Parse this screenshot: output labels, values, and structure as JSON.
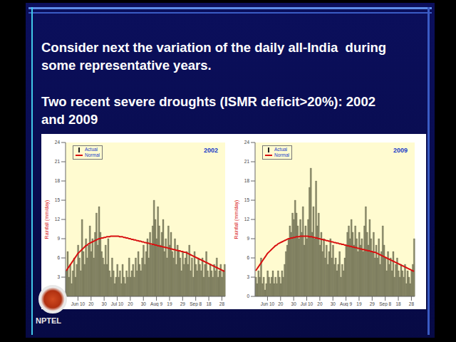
{
  "slide": {
    "heading_lines": [
      "Consider next the variation of the daily all-India  during",
      "some representative years."
    ],
    "subheading_lines": [
      "Two recent severe droughts (ISMR deficit>20%): 2002",
      "and 2009"
    ],
    "logo": "NPTEL"
  },
  "chart_data": [
    {
      "type": "bar",
      "title": "2002",
      "y_label": "Rainfall (mm/day)",
      "categories": [
        null,
        null,
        null,
        null,
        null,
        null,
        null,
        null,
        null,
        "Jun 10",
        null,
        null,
        null,
        null,
        null,
        null,
        null,
        null,
        null,
        "20",
        null,
        null,
        null,
        null,
        null,
        null,
        null,
        null,
        null,
        "30",
        null,
        null,
        null,
        null,
        null,
        null,
        null,
        null,
        null,
        "Jul 10",
        null,
        null,
        null,
        null,
        null,
        null,
        null,
        null,
        null,
        "20",
        null,
        null,
        null,
        null,
        null,
        null,
        null,
        null,
        null,
        "30",
        null,
        null,
        null,
        null,
        null,
        null,
        null,
        null,
        null,
        "Aug 9",
        null,
        null,
        null,
        null,
        null,
        null,
        null,
        null,
        null,
        "19",
        null,
        null,
        null,
        null,
        null,
        null,
        null,
        null,
        null,
        "29",
        null,
        null,
        null,
        null,
        null,
        null,
        null,
        null,
        null,
        "Sep 8",
        null,
        null,
        null,
        null,
        null,
        null,
        null,
        null,
        null,
        "18",
        null,
        null,
        null,
        null,
        null,
        null,
        null,
        null,
        null,
        "28",
        null,
        null
      ],
      "series": [
        {
          "name": "Actual",
          "type": "bar",
          "color": "#8a8a68",
          "values": [
            4,
            7,
            3,
            5,
            2,
            4,
            6,
            3,
            5,
            8,
            6,
            4,
            12,
            7,
            5,
            9,
            6,
            8,
            11,
            7,
            9,
            6,
            10,
            13,
            8,
            14,
            10,
            7,
            6,
            5,
            8,
            5,
            9,
            4,
            3,
            6,
            4,
            2,
            3,
            5,
            3,
            4,
            2,
            5,
            3,
            2,
            4,
            3,
            6,
            3,
            4,
            5,
            3,
            6,
            4,
            7,
            5,
            4,
            6,
            8,
            5,
            7,
            9,
            6,
            10,
            8,
            11,
            15,
            12,
            9,
            14,
            11,
            8,
            10,
            12,
            7,
            9,
            6,
            11,
            8,
            10,
            7,
            6,
            9,
            5,
            8,
            7,
            6,
            4,
            7,
            5,
            6,
            7,
            5,
            8,
            4,
            6,
            3,
            7,
            5,
            4,
            6,
            5,
            4,
            6,
            3,
            5,
            7,
            4,
            3,
            5,
            4,
            3,
            5,
            4,
            6,
            3,
            4,
            5,
            3,
            4,
            5
          ]
        },
        {
          "name": "Normal",
          "type": "line",
          "color": "#d81010",
          "values": [
            4.0,
            4.3,
            4.6,
            4.9,
            5.2,
            5.5,
            5.8,
            6.1,
            6.4,
            6.7,
            6.9,
            7.1,
            7.3,
            7.5,
            7.7,
            7.9,
            8.0,
            8.2,
            8.3,
            8.4,
            8.5,
            8.6,
            8.7,
            8.8,
            8.9,
            9.0,
            9.0,
            9.1,
            9.1,
            9.2,
            9.2,
            9.3,
            9.3,
            9.3,
            9.4,
            9.4,
            9.4,
            9.4,
            9.4,
            9.4,
            9.4,
            9.3,
            9.3,
            9.3,
            9.2,
            9.2,
            9.1,
            9.1,
            9.0,
            9.0,
            8.9,
            8.9,
            8.8,
            8.8,
            8.7,
            8.7,
            8.6,
            8.6,
            8.5,
            8.5,
            8.4,
            8.4,
            8.3,
            8.3,
            8.2,
            8.2,
            8.1,
            8.1,
            8.0,
            8.0,
            7.9,
            7.9,
            7.8,
            7.8,
            7.7,
            7.7,
            7.6,
            7.6,
            7.5,
            7.5,
            7.4,
            7.4,
            7.3,
            7.3,
            7.2,
            7.2,
            7.1,
            7.1,
            7.0,
            7.0,
            6.9,
            6.9,
            6.8,
            6.7,
            6.6,
            6.5,
            6.4,
            6.3,
            6.2,
            6.1,
            6.0,
            5.9,
            5.8,
            5.7,
            5.6,
            5.5,
            5.4,
            5.3,
            5.2,
            5.1,
            5.0,
            4.9,
            4.8,
            4.7,
            4.6,
            4.5,
            4.4,
            4.3,
            4.2,
            4.1,
            4.0,
            3.9
          ]
        }
      ],
      "ylim": [
        0,
        24
      ],
      "yticks": [
        0,
        3,
        6,
        9,
        12,
        15,
        18,
        21,
        24
      ],
      "legend": "upper left",
      "grid": false
    },
    {
      "type": "bar",
      "title": "2009",
      "y_label": "Rainfall (mm/day)",
      "categories": [
        null,
        null,
        null,
        null,
        null,
        null,
        null,
        null,
        null,
        "Jun 10",
        null,
        null,
        null,
        null,
        null,
        null,
        null,
        null,
        null,
        "20",
        null,
        null,
        null,
        null,
        null,
        null,
        null,
        null,
        null,
        "30",
        null,
        null,
        null,
        null,
        null,
        null,
        null,
        null,
        null,
        "Jul 10",
        null,
        null,
        null,
        null,
        null,
        null,
        null,
        null,
        null,
        "20",
        null,
        null,
        null,
        null,
        null,
        null,
        null,
        null,
        null,
        "30",
        null,
        null,
        null,
        null,
        null,
        null,
        null,
        null,
        null,
        "Aug 9",
        null,
        null,
        null,
        null,
        null,
        null,
        null,
        null,
        null,
        "19",
        null,
        null,
        null,
        null,
        null,
        null,
        null,
        null,
        null,
        "29",
        null,
        null,
        null,
        null,
        null,
        null,
        null,
        null,
        null,
        "Sep 8",
        null,
        null,
        null,
        null,
        null,
        null,
        null,
        null,
        null,
        "18",
        null,
        null,
        null,
        null,
        null,
        null,
        null,
        null,
        null,
        "28",
        null,
        null
      ],
      "series": [
        {
          "name": "Actual",
          "type": "bar",
          "color": "#8a8a68",
          "values": [
            3,
            2,
            4,
            3,
            6,
            2,
            3,
            1,
            2,
            4,
            3,
            2,
            3,
            4,
            2,
            3,
            2,
            4,
            3,
            2,
            4,
            3,
            5,
            7,
            8,
            9,
            11,
            10,
            13,
            12,
            15,
            13,
            11,
            9,
            12,
            10,
            14,
            8,
            11,
            9,
            12,
            17,
            20,
            10,
            14,
            9,
            18,
            11,
            13,
            8,
            10,
            7,
            9,
            6,
            8,
            5,
            7,
            9,
            6,
            8,
            5,
            6,
            4,
            5,
            7,
            3,
            5,
            4,
            6,
            8,
            10,
            11,
            9,
            12,
            10,
            8,
            11,
            9,
            7,
            10,
            8,
            9,
            7,
            11,
            14,
            10,
            8,
            12,
            9,
            7,
            10,
            6,
            8,
            6,
            9,
            5,
            7,
            11,
            8,
            6,
            4,
            7,
            5,
            6,
            4,
            7,
            3,
            5,
            6,
            4,
            3,
            5,
            4,
            3,
            5,
            2,
            4,
            3,
            2,
            4,
            5,
            9
          ]
        },
        {
          "name": "Normal",
          "type": "line",
          "color": "#d81010",
          "values": [
            4.0,
            4.3,
            4.6,
            4.9,
            5.2,
            5.5,
            5.8,
            6.1,
            6.4,
            6.7,
            6.9,
            7.1,
            7.3,
            7.5,
            7.7,
            7.9,
            8.0,
            8.2,
            8.3,
            8.4,
            8.5,
            8.6,
            8.7,
            8.8,
            8.9,
            9.0,
            9.0,
            9.1,
            9.1,
            9.2,
            9.2,
            9.3,
            9.3,
            9.3,
            9.4,
            9.4,
            9.4,
            9.4,
            9.4,
            9.4,
            9.4,
            9.3,
            9.3,
            9.3,
            9.2,
            9.2,
            9.1,
            9.1,
            9.0,
            9.0,
            8.9,
            8.9,
            8.8,
            8.8,
            8.7,
            8.7,
            8.6,
            8.6,
            8.5,
            8.5,
            8.4,
            8.4,
            8.3,
            8.3,
            8.2,
            8.2,
            8.1,
            8.1,
            8.0,
            8.0,
            7.9,
            7.9,
            7.8,
            7.8,
            7.7,
            7.7,
            7.6,
            7.6,
            7.5,
            7.5,
            7.4,
            7.4,
            7.3,
            7.3,
            7.2,
            7.2,
            7.1,
            7.1,
            7.0,
            7.0,
            6.9,
            6.9,
            6.8,
            6.7,
            6.6,
            6.5,
            6.4,
            6.3,
            6.2,
            6.1,
            6.0,
            5.9,
            5.8,
            5.7,
            5.6,
            5.5,
            5.4,
            5.3,
            5.2,
            5.1,
            5.0,
            4.9,
            4.8,
            4.7,
            4.6,
            4.5,
            4.4,
            4.3,
            4.2,
            4.1,
            4.0,
            3.9
          ]
        }
      ],
      "ylim": [
        0,
        24
      ],
      "yticks": [
        0,
        3,
        6,
        9,
        12,
        15,
        18,
        21,
        24
      ],
      "legend": "upper left",
      "grid": false
    }
  ]
}
